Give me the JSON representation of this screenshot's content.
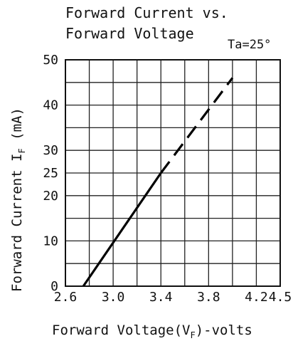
{
  "chart_data": {
    "type": "line",
    "title_line1": "Forward Current vs.",
    "title_line2": "Forward Voltage",
    "condition": "Ta=25°",
    "xlabel": {
      "pre": "Forward Voltage(V",
      "sub": "F",
      "post": ")-volts"
    },
    "ylabel": {
      "pre": "Forward Current I",
      "sub": "F",
      "post": " (mA)"
    },
    "xlim": [
      2.6,
      4.5
    ],
    "ylim": [
      0,
      50
    ],
    "x_ticks": [
      2.6,
      3.0,
      3.4,
      3.8,
      4.2,
      4.5
    ],
    "x_tick_labels": [
      "2.6",
      "3.0",
      "3.4",
      "3.8",
      "4.2",
      "4.5"
    ],
    "y_ticks": [
      0,
      10,
      20,
      25,
      30,
      40,
      50
    ],
    "y_tick_labels": [
      "0",
      "10",
      "20",
      "25",
      "30",
      "40",
      "50"
    ],
    "grid_x": [
      2.6,
      2.8,
      3.0,
      3.2,
      3.4,
      3.6,
      3.8,
      4.0,
      4.2,
      4.5
    ],
    "grid_y": [
      0,
      5,
      10,
      15,
      20,
      25,
      30,
      35,
      40,
      45,
      50
    ],
    "grid": true,
    "series": [
      {
        "style": "solid",
        "x": [
          2.75,
          3.4
        ],
        "y": [
          0,
          25
        ]
      },
      {
        "style": "dashed",
        "x": [
          3.4,
          4.0
        ],
        "y": [
          25,
          46
        ]
      }
    ]
  }
}
